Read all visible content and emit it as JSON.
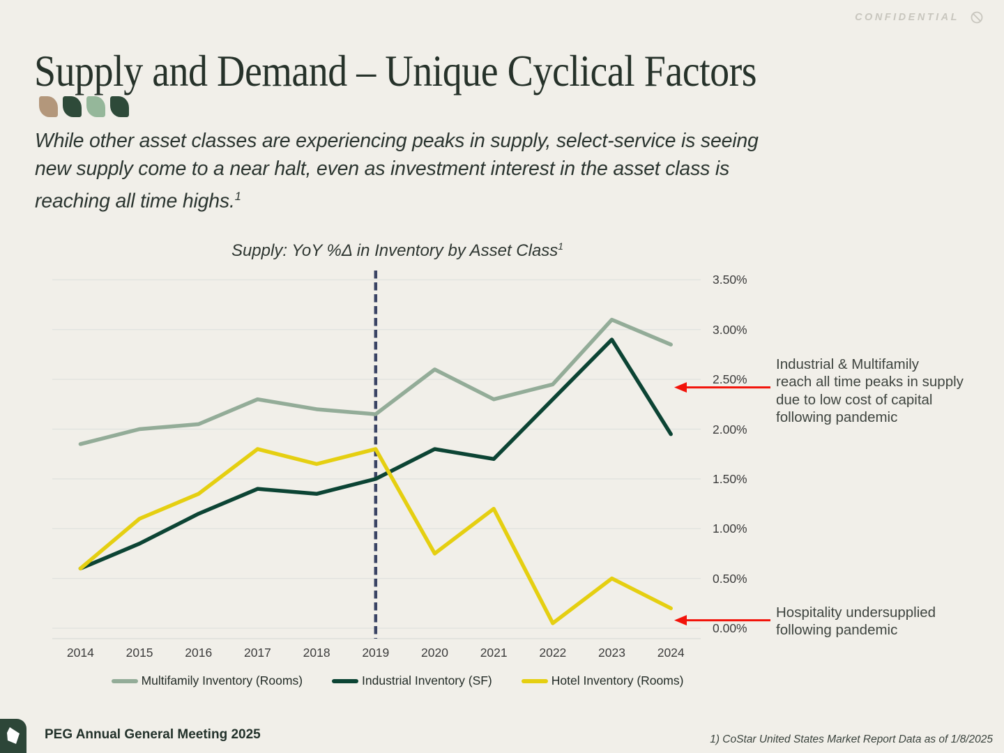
{
  "slide": {
    "confidential_label": "CONFIDENTIAL",
    "title": "Supply and Demand – Unique Cyclical Factors",
    "subtitle_text": "While other asset classes are experiencing peaks in supply, select-service is seeing\nnew supply come to a near halt, even as investment interest in the asset class is\nreaching all time highs.",
    "subtitle_footnote_marker": "1",
    "accent_shape_colors": [
      "#b3977b",
      "#2e4a39",
      "#95b79a",
      "#2e4a39"
    ],
    "background_color": "#f1efe9",
    "footer": {
      "left_text": "PEG Annual General Meeting 2025",
      "right_text": "1) CoStar United States Market Report Data as of 1/8/2025"
    }
  },
  "chart_data": {
    "type": "line",
    "title": "Supply: YoY %Δ in Inventory by Asset Class",
    "title_footnote_marker": "1",
    "categories": [
      "2014",
      "2015",
      "2016",
      "2017",
      "2018",
      "2019",
      "2020",
      "2021",
      "2022",
      "2023",
      "2024"
    ],
    "series": [
      {
        "name": "Multifamily Inventory (Rooms)",
        "color": "#93ac98",
        "values": [
          1.85,
          2.0,
          2.05,
          2.3,
          2.2,
          2.15,
          2.6,
          2.3,
          2.45,
          3.1,
          2.85
        ]
      },
      {
        "name": "Industrial Inventory (SF)",
        "color": "#0c4434",
        "values": [
          0.6,
          0.85,
          1.15,
          1.4,
          1.35,
          1.5,
          1.8,
          1.7,
          2.3,
          2.9,
          1.95
        ]
      },
      {
        "name": "Hotel Inventory (Rooms)",
        "color": "#e5cf11",
        "values": [
          0.6,
          1.1,
          1.35,
          1.8,
          1.65,
          1.8,
          0.75,
          1.2,
          0.05,
          0.5,
          0.2
        ]
      }
    ],
    "ylabel": "",
    "xlabel": "",
    "ylim": [
      0,
      3.5
    ],
    "grid": true,
    "grid_color": "#e0e2de",
    "legend_position": "bottom",
    "y_ticks": [
      {
        "label": "3.50%",
        "value": 3.5
      },
      {
        "label": "3.00%",
        "value": 3.0
      },
      {
        "label": "2.50%",
        "value": 2.5
      },
      {
        "label": "2.00%",
        "value": 2.0
      },
      {
        "label": "1.50%",
        "value": 1.5
      },
      {
        "label": "1.00%",
        "value": 1.0
      },
      {
        "label": "0.50%",
        "value": 0.5
      },
      {
        "label": "0.00%",
        "value": 0.0
      }
    ],
    "reference_line": {
      "category": "2019",
      "color": "#3a4464",
      "style": "dashed"
    },
    "annotations": [
      {
        "lines": [
          "Industrial & Multifamily",
          "reach all time peaks in supply",
          "due to low cost of capital",
          "following pandemic"
        ],
        "arrow_value": 2.42,
        "arrow_color": "#f2130a"
      },
      {
        "lines": [
          "Hospitality undersupplied",
          "following pandemic"
        ],
        "arrow_value": 0.08,
        "arrow_color": "#f2130a"
      }
    ]
  }
}
